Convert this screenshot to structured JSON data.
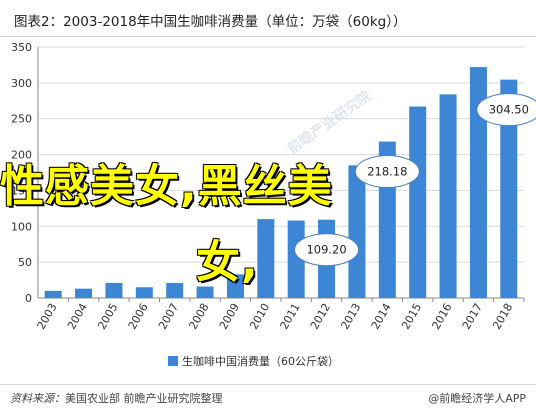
{
  "title": "图表2：2003-2018年中国生咖啡消费量（单位：万袋（60kg））",
  "source_label": "资料来源：",
  "source_text": "美国农业部 前瞻产业研究院整理",
  "brand": "@前瞻经济学人APP",
  "overlay": {
    "line1": "性感美女,黑丝美",
    "line2": "女,"
  },
  "watermark": "前瞻产业研究院",
  "colors": {
    "bar": "#3d86d6",
    "axis": "#888888",
    "grid": "#d9d9d9",
    "callout_border": "#4a7fc0"
  },
  "chart_data": {
    "type": "bar",
    "categories": [
      "2003",
      "2004",
      "2005",
      "2006",
      "2007",
      "2008",
      "2009",
      "2010",
      "2011",
      "2012",
      "2013",
      "2014",
      "2015",
      "2016",
      "2017",
      "2018"
    ],
    "series": [
      {
        "name": "生咖啡中国消费量（60公斤袋）",
        "values": [
          10,
          13,
          21,
          15,
          21,
          16,
          33,
          110,
          108,
          109.2,
          185,
          218.18,
          267,
          284,
          322,
          304.5
        ]
      }
    ],
    "yticks": [
      "0",
      "50",
      "100",
      "150",
      "200",
      "250",
      "300",
      "350"
    ],
    "ylim": [
      0,
      350
    ],
    "callouts": [
      {
        "category": "2012",
        "text": "109.20"
      },
      {
        "category": "2014",
        "text": "218.18"
      },
      {
        "category": "2018",
        "text": "304.50"
      }
    ],
    "grid": true,
    "legend_position": "bottom"
  }
}
